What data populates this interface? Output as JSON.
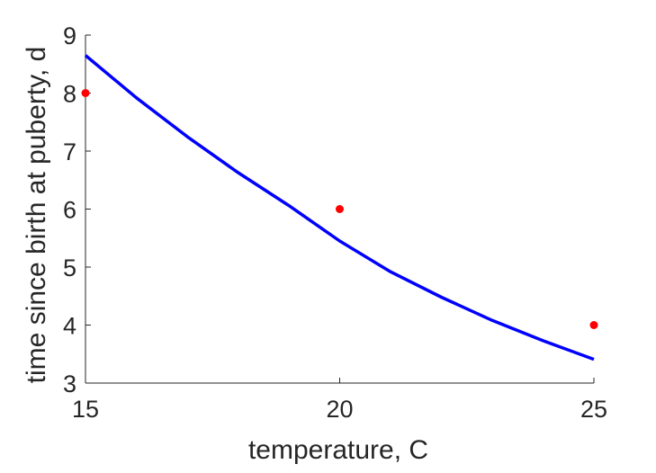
{
  "chart_data": {
    "type": "line",
    "xlabel": "temperature, C",
    "ylabel": "time since birth at puberty, d",
    "xlim": [
      15,
      25
    ],
    "ylim": [
      3,
      9
    ],
    "x_ticks": [
      "15",
      "20",
      "25"
    ],
    "y_ticks": [
      "3",
      "4",
      "5",
      "6",
      "7",
      "8",
      "9"
    ],
    "grid": false,
    "series": [
      {
        "kind": "line",
        "color": "#0000ff",
        "x": [
          15,
          16,
          17,
          18,
          19,
          20,
          21,
          22,
          23,
          24,
          25
        ],
        "y": [
          8.65,
          7.92,
          7.25,
          6.63,
          6.06,
          5.45,
          4.92,
          4.48,
          4.08,
          3.73,
          3.41
        ]
      },
      {
        "kind": "scatter",
        "color": "#ff0000",
        "x": [
          15,
          20,
          25
        ],
        "y": [
          8,
          6,
          4
        ]
      }
    ]
  }
}
